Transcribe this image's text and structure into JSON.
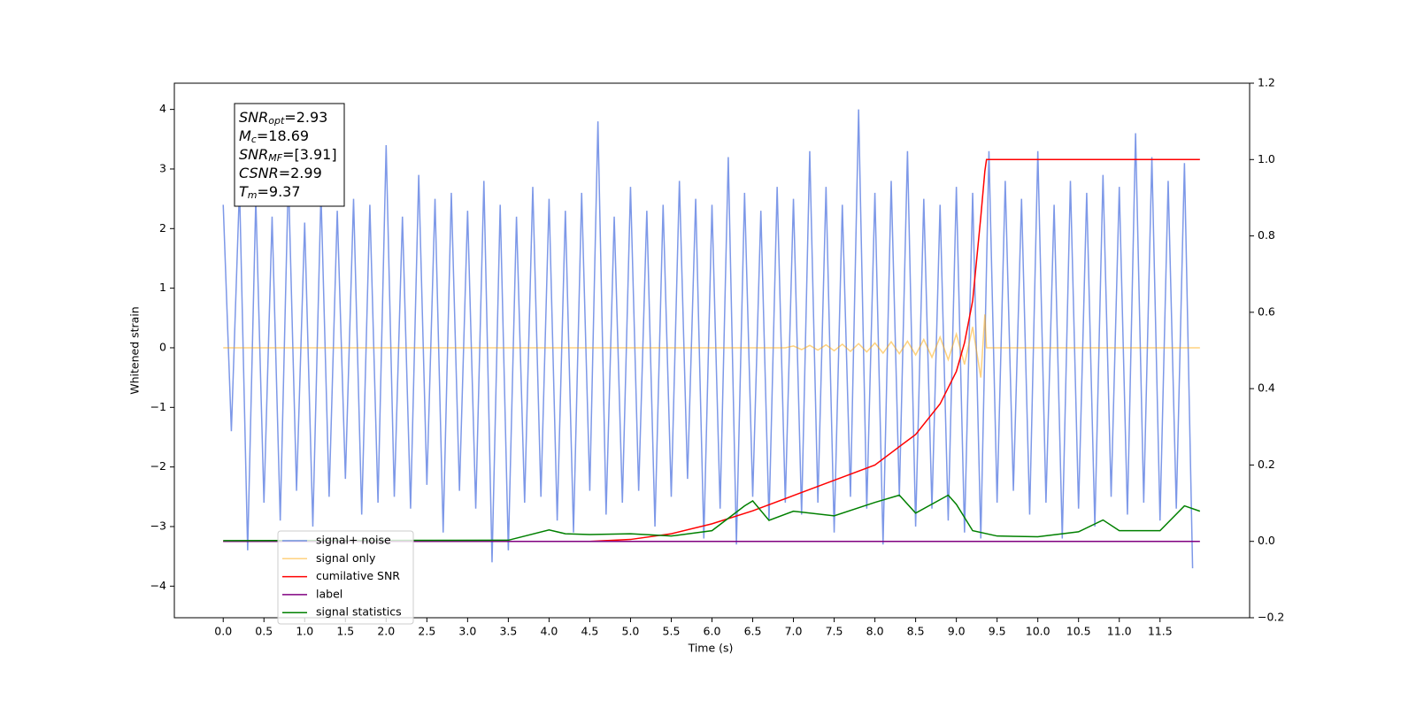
{
  "chart_data": {
    "type": "line",
    "xlabel": "Time (s)",
    "ylabel": "Whitened strain",
    "xlim": [
      -0.6,
      12.6
    ],
    "ylim": [
      -4.53,
      4.44
    ],
    "y2lim": [
      -0.2,
      1.2
    ],
    "xticks": [
      {
        "value": 0,
        "label": "0.0"
      },
      0.5,
      {
        "value": 1,
        "label": "1.0"
      },
      1.5,
      {
        "value": 2,
        "label": "2.0"
      },
      2.5,
      {
        "value": 3,
        "label": "3.0"
      },
      3.5,
      {
        "value": 4,
        "label": "4.0"
      },
      4.5,
      {
        "value": 5,
        "label": "5.0"
      },
      5.5,
      {
        "value": 6,
        "label": "6.0"
      },
      6.5,
      {
        "value": 7,
        "label": "7.0"
      },
      7.5,
      {
        "value": 8,
        "label": "8.0"
      },
      8.5,
      {
        "value": 9,
        "label": "9.0"
      },
      9.5,
      {
        "value": 10,
        "label": "10.0"
      },
      10.5,
      {
        "value": 11,
        "label": "11.0"
      },
      11.5
    ],
    "yticks": [
      {
        "value": -4,
        "label": "−4"
      },
      {
        "value": -3,
        "label": "−3"
      },
      {
        "value": -2,
        "label": "−2"
      },
      {
        "value": -1,
        "label": "−1"
      },
      0,
      1,
      2,
      3,
      4
    ],
    "y2ticks": [
      {
        "value": -0.2,
        "label": "−0.2"
      },
      {
        "value": 0,
        "label": "0.0"
      },
      0.2,
      0.4,
      0.6,
      0.8,
      {
        "value": 1,
        "label": "1.0"
      },
      1.2
    ],
    "annotations": [
      {
        "sym": "SNR",
        "sub": "opt",
        "text": "=2.93"
      },
      {
        "sym": "M",
        "sub": "c",
        "text": "=18.69"
      },
      {
        "sym": "SNR",
        "sub": "MF",
        "text": "=[3.91]"
      },
      {
        "sym": "CSNR",
        "sub": "",
        "text": "=2.99"
      },
      {
        "sym": "T",
        "sub": "m",
        "text": "=9.37"
      }
    ],
    "series": [
      {
        "name": "signal+ noise",
        "color": "#6f8de6",
        "opacity": 0.9,
        "x": [
          0,
          0.1,
          0.2,
          0.3,
          0.4,
          0.5,
          0.6,
          0.7,
          0.8,
          0.9,
          1,
          1.1,
          1.2,
          1.3,
          1.4,
          1.5,
          1.6,
          1.7,
          1.8,
          1.9,
          2,
          2.1,
          2.2,
          2.3,
          2.4,
          2.5,
          2.6,
          2.7,
          2.8,
          2.9,
          3,
          3.1,
          3.2,
          3.3,
          3.4,
          3.5,
          3.6,
          3.7,
          3.8,
          3.9,
          4,
          4.1,
          4.2,
          4.3,
          4.4,
          4.5,
          4.6,
          4.7,
          4.8,
          4.9,
          5,
          5.1,
          5.2,
          5.3,
          5.4,
          5.5,
          5.6,
          5.7,
          5.8,
          5.9,
          6,
          6.1,
          6.2,
          6.3,
          6.4,
          6.5,
          6.6,
          6.7,
          6.8,
          6.9,
          7,
          7.1,
          7.2,
          7.3,
          7.4,
          7.5,
          7.6,
          7.7,
          7.8,
          7.9,
          8,
          8.1,
          8.2,
          8.3,
          8.4,
          8.5,
          8.6,
          8.7,
          8.8,
          8.9,
          9,
          9.1,
          9.2,
          9.3,
          9.4,
          9.5,
          9.6,
          9.7,
          9.8,
          9.9,
          10,
          10.1,
          10.2,
          10.3,
          10.4,
          10.5,
          10.6,
          10.7,
          10.8,
          10.9,
          11,
          11.1,
          11.2,
          11.3,
          11.4,
          11.5,
          11.6,
          11.7,
          11.8,
          11.9
        ],
        "values": [
          2.4,
          -1.4,
          2.7,
          -3.4,
          2.5,
          -2.6,
          2.2,
          -2.9,
          2.9,
          -2.4,
          2.1,
          -3.0,
          2.6,
          -2.5,
          2.3,
          -2.2,
          2.5,
          -2.8,
          2.4,
          -2.6,
          3.4,
          -2.5,
          2.2,
          -2.7,
          2.9,
          -2.3,
          2.5,
          -3.1,
          2.6,
          -2.4,
          2.3,
          -2.7,
          2.8,
          -3.6,
          2.4,
          -3.4,
          2.2,
          -2.6,
          2.7,
          -2.5,
          2.5,
          -2.9,
          2.3,
          -3.1,
          2.6,
          -2.4,
          3.8,
          -2.8,
          2.2,
          -2.6,
          2.7,
          -2.4,
          2.3,
          -3.0,
          2.4,
          -2.5,
          2.8,
          -2.2,
          2.5,
          -3.2,
          2.4,
          -2.7,
          3.2,
          -3.3,
          2.6,
          -2.5,
          2.3,
          -2.9,
          2.7,
          -2.6,
          2.5,
          -2.8,
          3.3,
          -2.6,
          2.7,
          -3.1,
          2.4,
          -2.5,
          4.0,
          -2.7,
          2.6,
          -3.3,
          2.8,
          -2.5,
          3.3,
          -3.0,
          2.5,
          -2.7,
          2.4,
          -2.9,
          2.7,
          -3.1,
          2.6,
          -3.2,
          3.3,
          -2.6,
          2.8,
          -2.4,
          2.5,
          -2.8,
          3.3,
          -2.6,
          2.4,
          -3.2,
          2.8,
          -2.7,
          2.6,
          -3.0,
          2.9,
          -2.5,
          2.7,
          -2.8,
          3.6,
          -2.6,
          3.2,
          -2.9,
          2.8,
          -2.7,
          3.1,
          -3.7
        ]
      },
      {
        "name": "signal only",
        "color": "#ffa500",
        "opacity": 0.5,
        "x": [
          0,
          6.9,
          7.0,
          7.1,
          7.2,
          7.3,
          7.4,
          7.5,
          7.6,
          7.7,
          7.8,
          7.9,
          8.0,
          8.1,
          8.2,
          8.3,
          8.4,
          8.5,
          8.6,
          8.7,
          8.8,
          8.9,
          9.0,
          9.1,
          9.2,
          9.3,
          9.35,
          9.37,
          11.99
        ],
        "values": [
          0,
          0,
          0.03,
          -0.03,
          0.04,
          -0.04,
          0.05,
          -0.05,
          0.06,
          -0.06,
          0.07,
          -0.07,
          0.08,
          -0.09,
          0.1,
          -0.1,
          0.11,
          -0.12,
          0.14,
          -0.16,
          0.18,
          -0.2,
          0.23,
          -0.28,
          0.35,
          -0.5,
          0.56,
          0,
          0
        ]
      },
      {
        "name": "cumilative SNR",
        "color": "red",
        "opacity": 1,
        "axis": "y2",
        "x": [
          0,
          4.5,
          5.0,
          5.5,
          6.0,
          6.5,
          7.0,
          7.5,
          8.0,
          8.5,
          8.8,
          9.0,
          9.1,
          9.2,
          9.3,
          9.35,
          9.37,
          11.99
        ],
        "values": [
          0,
          0,
          0.005,
          0.02,
          0.046,
          0.08,
          0.12,
          0.16,
          0.2,
          0.28,
          0.36,
          0.445,
          0.52,
          0.63,
          0.85,
          0.97,
          1.0,
          1.0
        ]
      },
      {
        "name": "label",
        "color": "purple",
        "opacity": 1,
        "axis": "y2",
        "x": [
          0,
          11.99
        ],
        "values": [
          0,
          0
        ]
      },
      {
        "name": "signal statistics",
        "color": "green",
        "opacity": 1,
        "axis": "y2",
        "x": [
          0,
          3.5,
          4.0,
          4.2,
          4.5,
          5.0,
          5.5,
          6.0,
          6.4,
          6.5,
          6.7,
          7.0,
          7.5,
          8.0,
          8.3,
          8.5,
          8.9,
          9.0,
          9.2,
          9.5,
          10.0,
          10.5,
          10.8,
          11.0,
          11.5,
          11.8,
          11.99
        ],
        "values": [
          0.002,
          0.003,
          0.03,
          0.02,
          0.018,
          0.02,
          0.014,
          0.028,
          0.093,
          0.106,
          0.055,
          0.079,
          0.067,
          0.102,
          0.121,
          0.074,
          0.121,
          0.097,
          0.028,
          0.014,
          0.012,
          0.025,
          0.056,
          0.028,
          0.028,
          0.093,
          0.079
        ]
      }
    ]
  }
}
